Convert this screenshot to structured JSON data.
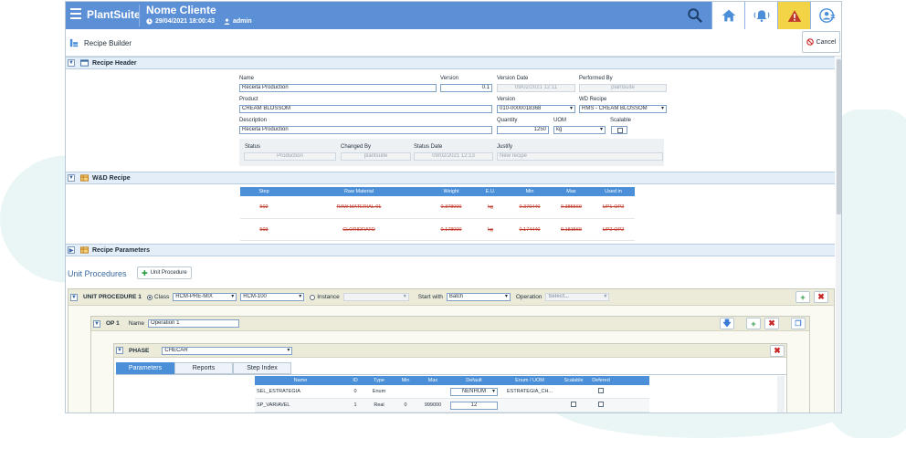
{
  "brand": {
    "logo": "PlantSuite",
    "client": "Nome Cliente",
    "datetime": "29/04/2021 18:00:43",
    "user": "admin"
  },
  "page": {
    "title": "Recipe Builder",
    "cancel_label": "Cancel"
  },
  "sections": {
    "header": "Recipe Header",
    "wd_recipe": "W&D Recipe",
    "parameters": "Recipe Parameters"
  },
  "header_form": {
    "name_label": "Name",
    "name_value": "Receita Production",
    "version_label": "Version",
    "version_value": "0.1",
    "version_date_label": "Version Date",
    "version_date_value": "09/02/2021 12:11",
    "performed_by_label": "Performed By",
    "performed_by_value": "plantsuite",
    "product_label": "Product",
    "product_value": "CREAM BLOSSOM",
    "version2_label": "Version",
    "version2_value": "010-0000018368",
    "wd_recipe_label": "WD Recipe",
    "wd_recipe_value": "RMS - CREAM BLOSSOM",
    "description_label": "Description",
    "description_value": "Receita Production",
    "quantity_label": "Quantity",
    "quantity_value": "1250",
    "uom_label": "UOM",
    "uom_value": "kg",
    "scalable_label": "Scalable",
    "status_label": "Status",
    "status_value": "Production",
    "changed_by_label": "Changed By",
    "changed_by_value": "plantsuite",
    "status_date_label": "Status Date",
    "status_date_value": "09/02/2021 12:13",
    "justify_label": "Justify",
    "justify_placeholder": "New recipe"
  },
  "wd_table": {
    "headers": [
      "Step",
      "Raw Material",
      "Weight",
      "E.U.",
      "Min",
      "Max",
      "Used in"
    ],
    "rows": [
      [
        "502",
        "RAW MATERIAL 01",
        "0.378000",
        "kg",
        "0.370440",
        "0.385560",
        "UP1-OP2"
      ],
      [
        "503",
        "CLORIDRATO",
        "0.178000",
        "kg",
        "0.174440",
        "0.181560",
        "UP2-OP2"
      ]
    ]
  },
  "unit_procedures": {
    "title": "Unit Procedures",
    "add_label": "Unit Procedure",
    "up_label": "UNIT PROCEDURE 1",
    "class_label": "Class",
    "class_value": "RCM-PRE-MIX",
    "class2_value": "RCM-100",
    "instance_label": "Instance",
    "start_with_label": "Start with",
    "start_with_value": "Batch",
    "operation_label": "Operation",
    "operation_placeholder": "Select..."
  },
  "op": {
    "label": "OP 1",
    "name_label": "Name",
    "name_value": "Operation 1"
  },
  "phase": {
    "label": "PHASE",
    "value": "CHECAR"
  },
  "tabs": [
    "Parameters",
    "Reports",
    "Step Index"
  ],
  "param_table": {
    "headers": [
      "Name",
      "ID",
      "Type",
      "Min",
      "Max",
      "Default",
      "Enum / UOM",
      "Scalable",
      "Defered"
    ],
    "rows": [
      {
        "name": "SEL_ESTRATEGIA",
        "id": "0",
        "type": "Enum",
        "min": "",
        "max": "",
        "default": "NENHUM",
        "enum": "ESTRATEGIA_CH..."
      },
      {
        "name": "SP_VARIAVEL",
        "id": "1",
        "type": "Real",
        "min": "0",
        "max": "999000",
        "default": "12",
        "enum": ""
      }
    ]
  },
  "colors": {
    "topbar": "#5b8fd6",
    "warning": "#f4d447",
    "grid_header": "#4a8fd8"
  }
}
